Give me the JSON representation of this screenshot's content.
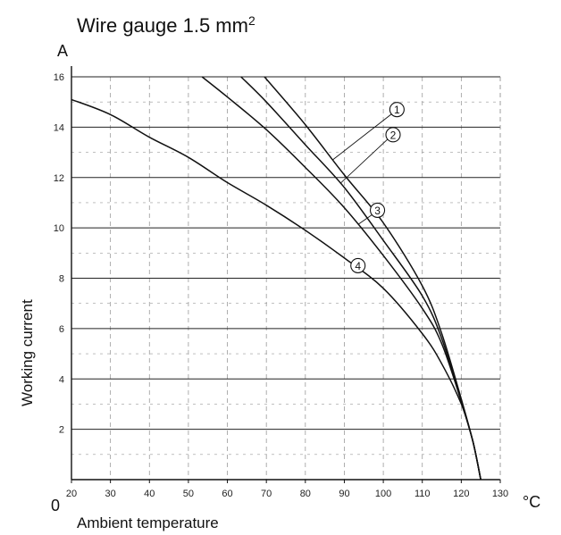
{
  "chart_data": {
    "type": "line",
    "title": "Wire gauge 1.5 mm",
    "title_superscript": "2",
    "xlabel": "Ambient temperature",
    "ylabel": "Working current",
    "x_unit": "°C",
    "y_unit": "A",
    "origin_label": "0",
    "xlim": [
      20,
      130
    ],
    "ylim": [
      0,
      16
    ],
    "x_ticks": [
      "20",
      "30",
      "40",
      "50",
      "60",
      "70",
      "80",
      "90",
      "100",
      "110",
      "120",
      "130"
    ],
    "x_tick_values": [
      20,
      30,
      40,
      50,
      60,
      70,
      80,
      90,
      100,
      110,
      120,
      130
    ],
    "y_ticks": [
      "2",
      "4",
      "6",
      "8",
      "10",
      "12",
      "14",
      "16"
    ],
    "y_tick_values": [
      2,
      4,
      6,
      8,
      10,
      12,
      14,
      16
    ],
    "grid": true,
    "series": [
      {
        "label": "1",
        "x": [
          69.5,
          80,
          90,
          100,
          110,
          115,
          120,
          123,
          125
        ],
        "y": [
          16,
          14.1,
          12.1,
          10.2,
          7.7,
          5.8,
          3.2,
          1.5,
          0
        ]
      },
      {
        "label": "2",
        "x": [
          63.5,
          70,
          80,
          90,
          100,
          110,
          115,
          120,
          123,
          125
        ],
        "y": [
          16,
          15.0,
          13.3,
          11.6,
          9.5,
          7.3,
          5.6,
          3.1,
          1.5,
          0
        ]
      },
      {
        "label": "3",
        "x": [
          53.5,
          60,
          70,
          80,
          90,
          100,
          110,
          115,
          120,
          123,
          125
        ],
        "y": [
          16,
          15.2,
          13.9,
          12.4,
          10.8,
          8.9,
          6.8,
          5.4,
          3.1,
          1.5,
          0
        ]
      },
      {
        "label": "4",
        "x": [
          20,
          30,
          40,
          50,
          60,
          70,
          80,
          90,
          100,
          110,
          115,
          120,
          123,
          125
        ],
        "y": [
          15.1,
          14.5,
          13.6,
          12.8,
          11.8,
          10.9,
          9.9,
          8.8,
          7.6,
          5.8,
          4.6,
          3.0,
          1.5,
          0
        ]
      }
    ],
    "curve_labels": [
      {
        "label": "1",
        "at_x": 103.5,
        "at_y": 14.7
      },
      {
        "label": "2",
        "at_x": 102.5,
        "at_y": 13.7
      },
      {
        "label": "3",
        "at_x": 98.5,
        "at_y": 10.7
      },
      {
        "label": "4",
        "at_x": 93.5,
        "at_y": 8.5
      }
    ],
    "colors": {
      "line": "#111111",
      "grid_major": "#222222",
      "grid_minor": "#9a9a9a"
    }
  }
}
